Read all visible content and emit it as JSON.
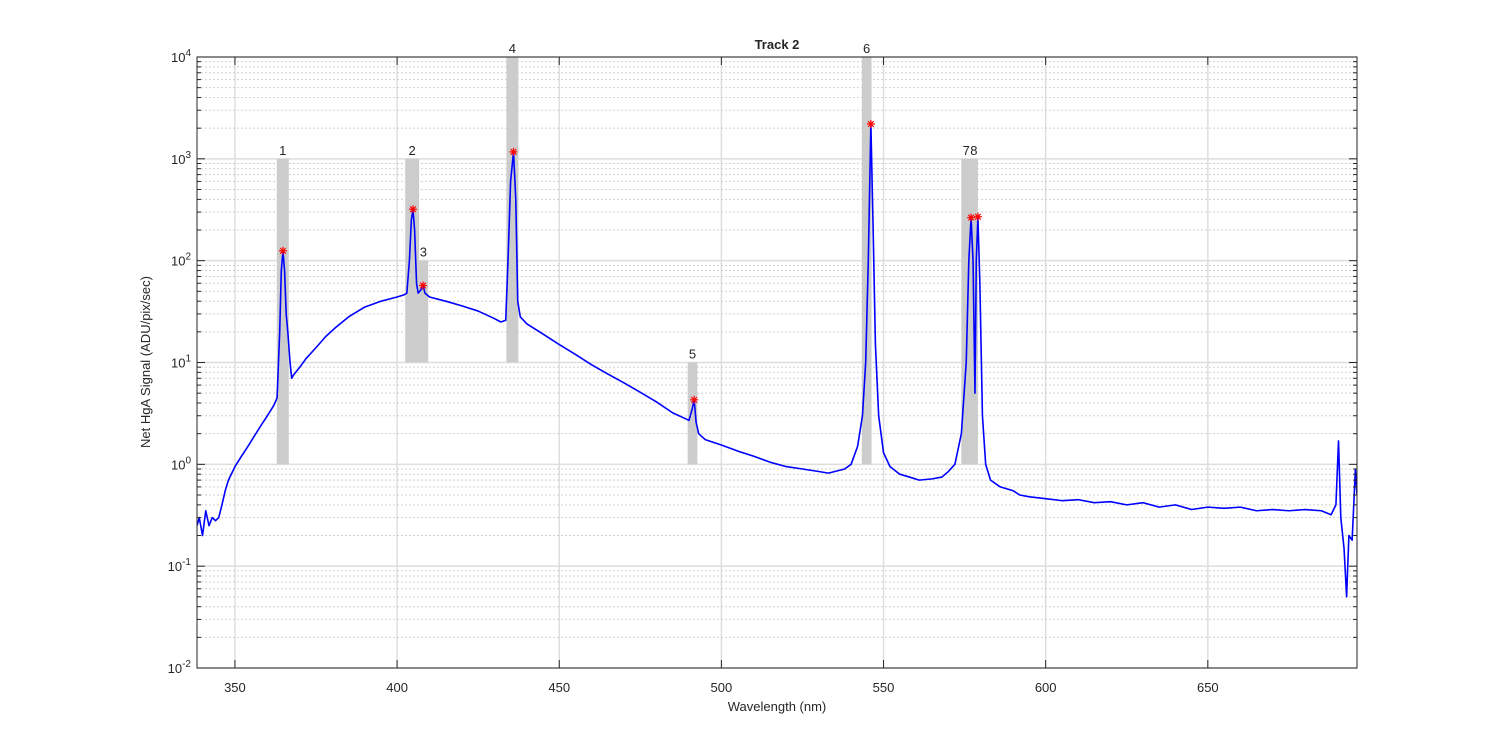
{
  "chart_data": {
    "type": "line",
    "title": "Track 2",
    "x_label": "Wavelength (nm)",
    "y_label": "Net HgA Signal (ADU/pix/sec)",
    "yscale": "log",
    "grid": true,
    "minor_grid": true,
    "xlim": [
      338.3,
      696
    ],
    "ylim": [
      0.01,
      10000
    ],
    "xticks": [
      350,
      400,
      450,
      500,
      550,
      600,
      650
    ],
    "yticks": [
      {
        "value": 0.01,
        "label": "10^-2"
      },
      {
        "value": 0.1,
        "label": "10^-1"
      },
      {
        "value": 1,
        "label": "10^0"
      },
      {
        "value": 10,
        "label": "10^1"
      },
      {
        "value": 100,
        "label": "10^2"
      },
      {
        "value": 1000,
        "label": "10^3"
      },
      {
        "value": 10000,
        "label": "10^4"
      }
    ],
    "bands": [
      {
        "label": "1",
        "x": [
          362.9,
          366.6
        ],
        "y": [
          1,
          1000
        ]
      },
      {
        "label": "2",
        "x": [
          402.5,
          406.8
        ],
        "y": [
          10,
          1000
        ]
      },
      {
        "label": "3",
        "x": [
          406.6,
          409.6
        ],
        "y": [
          10,
          100
        ]
      },
      {
        "label": "4",
        "x": [
          433.7,
          437.4
        ],
        "y": [
          10,
          10000
        ]
      },
      {
        "label": "5",
        "x": [
          489.6,
          492.6
        ],
        "y": [
          1,
          10
        ]
      },
      {
        "label": "6",
        "x": [
          543.3,
          546.3
        ],
        "y": [
          1,
          10000
        ]
      },
      {
        "label": "7",
        "x": [
          574.0,
          577.0
        ],
        "y": [
          1,
          1000
        ]
      },
      {
        "label": "8",
        "x": [
          576.6,
          579.1
        ],
        "y": [
          1,
          1000
        ]
      }
    ],
    "series": [
      {
        "color": "#0000ff",
        "x": [
          338.3,
          339,
          340,
          341,
          342,
          343,
          344,
          345,
          346,
          347,
          348,
          350,
          352,
          354,
          356,
          358,
          360,
          362,
          363,
          363.8,
          364.3,
          364.8,
          365.3,
          365.8,
          366.3,
          367,
          367.5,
          368,
          370,
          372,
          375,
          378,
          381,
          385,
          390,
          395,
          400,
          402,
          403,
          403.8,
          404.4,
          404.9,
          405.4,
          406,
          406.5,
          407.4,
          408,
          408.6,
          410,
          415,
          420,
          425,
          430,
          432,
          433.5,
          434.2,
          435,
          435.9,
          436.6,
          437.2,
          438,
          440,
          445,
          450,
          455,
          460,
          465,
          470,
          475,
          480,
          485,
          489,
          490,
          491,
          491.6,
          492.2,
          493,
          495,
          500,
          505,
          510,
          515,
          520,
          525,
          530,
          533,
          535,
          538,
          540,
          542,
          543.5,
          544.5,
          545.3,
          546.1,
          546.8,
          547.5,
          548.5,
          550,
          552,
          555,
          558,
          561,
          565,
          568,
          570,
          572,
          574,
          575.5,
          576.3,
          577,
          577.6,
          578.2,
          578.6,
          579.1,
          579.7,
          580.5,
          581.5,
          583,
          586,
          590,
          592,
          595,
          600,
          605,
          610,
          615,
          620,
          625,
          630,
          635,
          640,
          645,
          650,
          655,
          660,
          665,
          670,
          675,
          680,
          685,
          688,
          689.5,
          690.3,
          691,
          692,
          692.8,
          693.5,
          694.5,
          695.5,
          696
        ],
        "values": [
          0.25,
          0.3,
          0.2,
          0.35,
          0.25,
          0.3,
          0.28,
          0.3,
          0.4,
          0.55,
          0.7,
          0.95,
          1.2,
          1.5,
          1.9,
          2.4,
          3.0,
          3.8,
          4.5,
          20,
          80,
          125,
          80,
          30,
          20,
          10,
          7,
          7.5,
          9,
          11,
          14,
          18,
          22,
          28,
          35,
          40,
          44,
          46,
          48,
          100,
          250,
          320,
          200,
          60,
          48,
          52,
          57,
          48,
          44,
          40,
          36,
          32,
          27,
          25,
          26,
          100,
          600,
          1170,
          400,
          40,
          28,
          24,
          19,
          15,
          12,
          9.5,
          7.7,
          6.3,
          5.1,
          4.1,
          3.2,
          2.8,
          2.7,
          3.5,
          4.3,
          2.6,
          2.0,
          1.75,
          1.55,
          1.35,
          1.2,
          1.05,
          0.95,
          0.9,
          0.85,
          0.82,
          0.85,
          0.9,
          1.0,
          1.5,
          3,
          10,
          100,
          2200,
          200,
          15,
          3,
          1.3,
          0.95,
          0.8,
          0.75,
          0.7,
          0.72,
          0.75,
          0.85,
          1,
          2,
          10,
          100,
          265,
          100,
          5,
          100,
          270,
          60,
          3,
          1,
          0.7,
          0.6,
          0.55,
          0.5,
          0.48,
          0.46,
          0.44,
          0.45,
          0.42,
          0.43,
          0.4,
          0.42,
          0.38,
          0.4,
          0.36,
          0.38,
          0.37,
          0.38,
          0.35,
          0.36,
          0.35,
          0.36,
          0.35,
          0.32,
          0.4,
          1.7,
          0.3,
          0.15,
          0.05,
          0.2,
          0.18,
          0.9,
          0.5
        ]
      },
      {
        "color": "#ff0000",
        "marker": "*",
        "x": [
          364.8,
          404.9,
          408,
          435.9,
          491.6,
          546.1,
          577,
          579.1
        ],
        "values": [
          125,
          320,
          57,
          1170,
          4.3,
          2200,
          265,
          270
        ]
      }
    ]
  }
}
